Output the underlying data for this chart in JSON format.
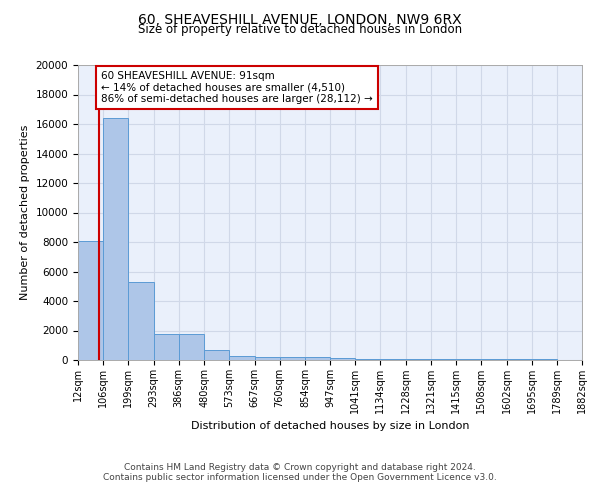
{
  "title1": "60, SHEAVESHILL AVENUE, LONDON, NW9 6RX",
  "title2": "Size of property relative to detached houses in London",
  "xlabel": "Distribution of detached houses by size in London",
  "ylabel": "Number of detached properties",
  "bar_edges": [
    12,
    106,
    199,
    293,
    386,
    480,
    573,
    667,
    760,
    854,
    947,
    1041,
    1134,
    1228,
    1321,
    1415,
    1508,
    1602,
    1695,
    1789,
    1882
  ],
  "bar_heights": [
    8100,
    16400,
    5300,
    1750,
    1750,
    700,
    300,
    230,
    200,
    175,
    150,
    100,
    90,
    80,
    70,
    60,
    50,
    40,
    35,
    30
  ],
  "bar_color": "#aec6e8",
  "bar_edge_color": "#5b9bd5",
  "grid_color": "#d0d8e8",
  "bg_color": "#eaf0fb",
  "property_sqm": 91,
  "vline_color": "#cc0000",
  "annotation_line1": "60 SHEAVESHILL AVENUE: 91sqm",
  "annotation_line2": "← 14% of detached houses are smaller (4,510)",
  "annotation_line3": "86% of semi-detached houses are larger (28,112) →",
  "annotation_box_color": "#ffffff",
  "annotation_box_edge": "#cc0000",
  "footer1": "Contains HM Land Registry data © Crown copyright and database right 2024.",
  "footer2": "Contains public sector information licensed under the Open Government Licence v3.0.",
  "ylim": [
    0,
    20000
  ],
  "yticks": [
    0,
    2000,
    4000,
    6000,
    8000,
    10000,
    12000,
    14000,
    16000,
    18000,
    20000
  ]
}
